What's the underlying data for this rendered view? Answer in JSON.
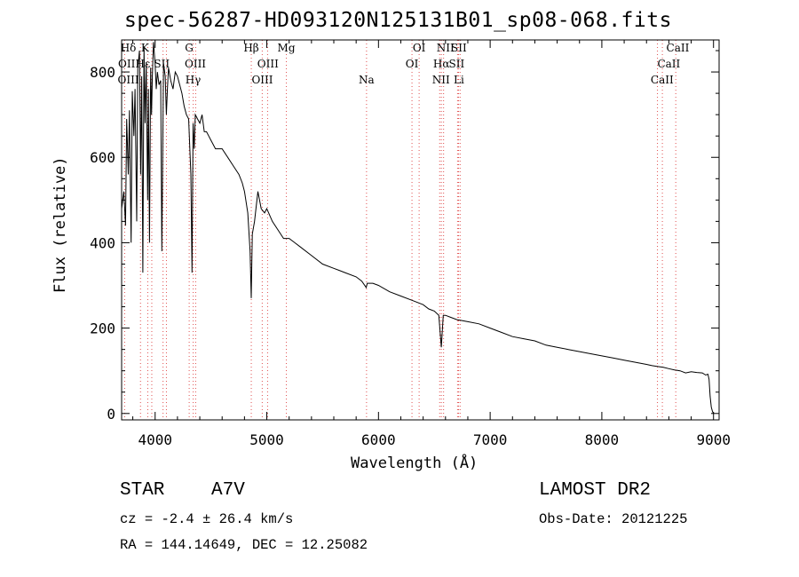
{
  "chart_data": {
    "type": "line",
    "title": "spec-56287-HD093120N125131B01_sp08-068.fits",
    "xlabel": "Wavelength (Å)",
    "ylabel": "Flux (relative)",
    "xlim": [
      3700,
      9050
    ],
    "ylim": [
      -15,
      875
    ],
    "xticks": [
      4000,
      5000,
      6000,
      7000,
      8000,
      9000
    ],
    "yticks": [
      0,
      200,
      400,
      600,
      800
    ],
    "series": [
      {
        "name": "flux",
        "x": [
          3700,
          3720,
          3735,
          3745,
          3760,
          3770,
          3785,
          3795,
          3810,
          3820,
          3835,
          3845,
          3860,
          3870,
          3880,
          3890,
          3900,
          3910,
          3920,
          3933,
          3940,
          3950,
          3960,
          3968,
          3975,
          3985,
          4000,
          4010,
          4020,
          4035,
          4050,
          4060,
          4075,
          4090,
          4101,
          4110,
          4120,
          4140,
          4160,
          4180,
          4200,
          4220,
          4240,
          4260,
          4280,
          4300,
          4320,
          4330,
          4340,
          4350,
          4360,
          4380,
          4400,
          4420,
          4440,
          4460,
          4480,
          4500,
          4540,
          4600,
          4650,
          4700,
          4750,
          4780,
          4800,
          4830,
          4850,
          4861,
          4870,
          4890,
          4920,
          4950,
          4980,
          5000,
          5050,
          5100,
          5150,
          5200,
          5250,
          5300,
          5400,
          5500,
          5600,
          5700,
          5800,
          5850,
          5890,
          5900,
          5950,
          6000,
          6100,
          6200,
          6300,
          6400,
          6450,
          6500,
          6540,
          6563,
          6580,
          6600,
          6650,
          6700,
          6800,
          6900,
          7000,
          7100,
          7200,
          7300,
          7400,
          7500,
          7600,
          7700,
          7800,
          7900,
          8000,
          8100,
          8200,
          8300,
          8400,
          8450,
          8500,
          8550,
          8600,
          8650,
          8700,
          8750,
          8800,
          8850,
          8900,
          8930,
          8950,
          8960,
          8970,
          8980,
          8990,
          9000
        ],
        "values": [
          480,
          520,
          440,
          690,
          560,
          710,
          400,
          755,
          650,
          760,
          450,
          810,
          850,
          560,
          790,
          330,
          860,
          680,
          820,
          500,
          760,
          400,
          810,
          700,
          790,
          870,
          820,
          760,
          800,
          770,
          780,
          380,
          820,
          790,
          700,
          760,
          810,
          780,
          760,
          800,
          790,
          770,
          750,
          720,
          700,
          690,
          560,
          330,
          680,
          620,
          700,
          690,
          680,
          700,
          660,
          660,
          650,
          640,
          620,
          620,
          600,
          580,
          560,
          540,
          520,
          470,
          380,
          270,
          420,
          450,
          520,
          480,
          470,
          480,
          450,
          430,
          410,
          410,
          400,
          390,
          370,
          350,
          340,
          330,
          320,
          310,
          295,
          305,
          305,
          300,
          285,
          275,
          265,
          255,
          245,
          240,
          230,
          155,
          230,
          230,
          225,
          220,
          215,
          210,
          200,
          190,
          180,
          175,
          170,
          160,
          155,
          150,
          145,
          140,
          135,
          130,
          125,
          120,
          115,
          112,
          110,
          108,
          105,
          102,
          100,
          95,
          98,
          96,
          95,
          90,
          92,
          80,
          40,
          15,
          5,
          0
        ]
      }
    ],
    "line_markers": [
      {
        "label": "Hδ",
        "x": 4101
      },
      {
        "label": "K",
        "x": 3934
      },
      {
        "label": "OII",
        "x": 3727
      },
      {
        "label": "Hε",
        "x": 3970
      },
      {
        "label": "OIII",
        "x": 3869
      },
      {
        "label": "SII",
        "x": 4071
      },
      {
        "label": "G",
        "x": 4305
      },
      {
        "label": "OIII",
        "x": 4363
      },
      {
        "label": "Hγ",
        "x": 4341
      },
      {
        "label": "Hβ",
        "x": 4861
      },
      {
        "label": "OIII",
        "x": 4959
      },
      {
        "label": "OIII",
        "x": 5007
      },
      {
        "label": "Mg",
        "x": 5175
      },
      {
        "label": "Na",
        "x": 5893
      },
      {
        "label": "OI",
        "x": 6300
      },
      {
        "label": "OI",
        "x": 6364
      },
      {
        "label": "NII",
        "x": 6548
      },
      {
        "label": "Hα",
        "x": 6563
      },
      {
        "label": "NII",
        "x": 6583
      },
      {
        "label": "SII",
        "x": 6717
      },
      {
        "label": "SII",
        "x": 6731
      },
      {
        "label": "Li",
        "x": 6708
      },
      {
        "label": "CaII",
        "x": 8498
      },
      {
        "label": "CaII",
        "x": 8542
      },
      {
        "label": "CaII",
        "x": 8662
      }
    ]
  },
  "info": {
    "object_class": "STAR",
    "subclass": "A7V",
    "survey": "LAMOST DR2",
    "cz": "cz = -2.4 ± 26.4 km/s",
    "obs_date": "Obs-Date: 20121225",
    "coords": "RA = 144.14649, DEC =  12.25082"
  },
  "labels_top": [
    "Hδ",
    "K",
    "OIII",
    "Hε",
    "OII",
    "SII",
    "G",
    "OIII",
    "Hγ",
    "Hβ",
    "OIII",
    "OIII",
    "Mg",
    "Na",
    "OI",
    "OI",
    "NII",
    "SII",
    "Hα",
    "SII",
    "NII",
    "Li",
    "CaII",
    "CaII",
    "CaII"
  ],
  "colors": {
    "marker": "#e05050",
    "axis": "#000000",
    "line": "#000000"
  }
}
